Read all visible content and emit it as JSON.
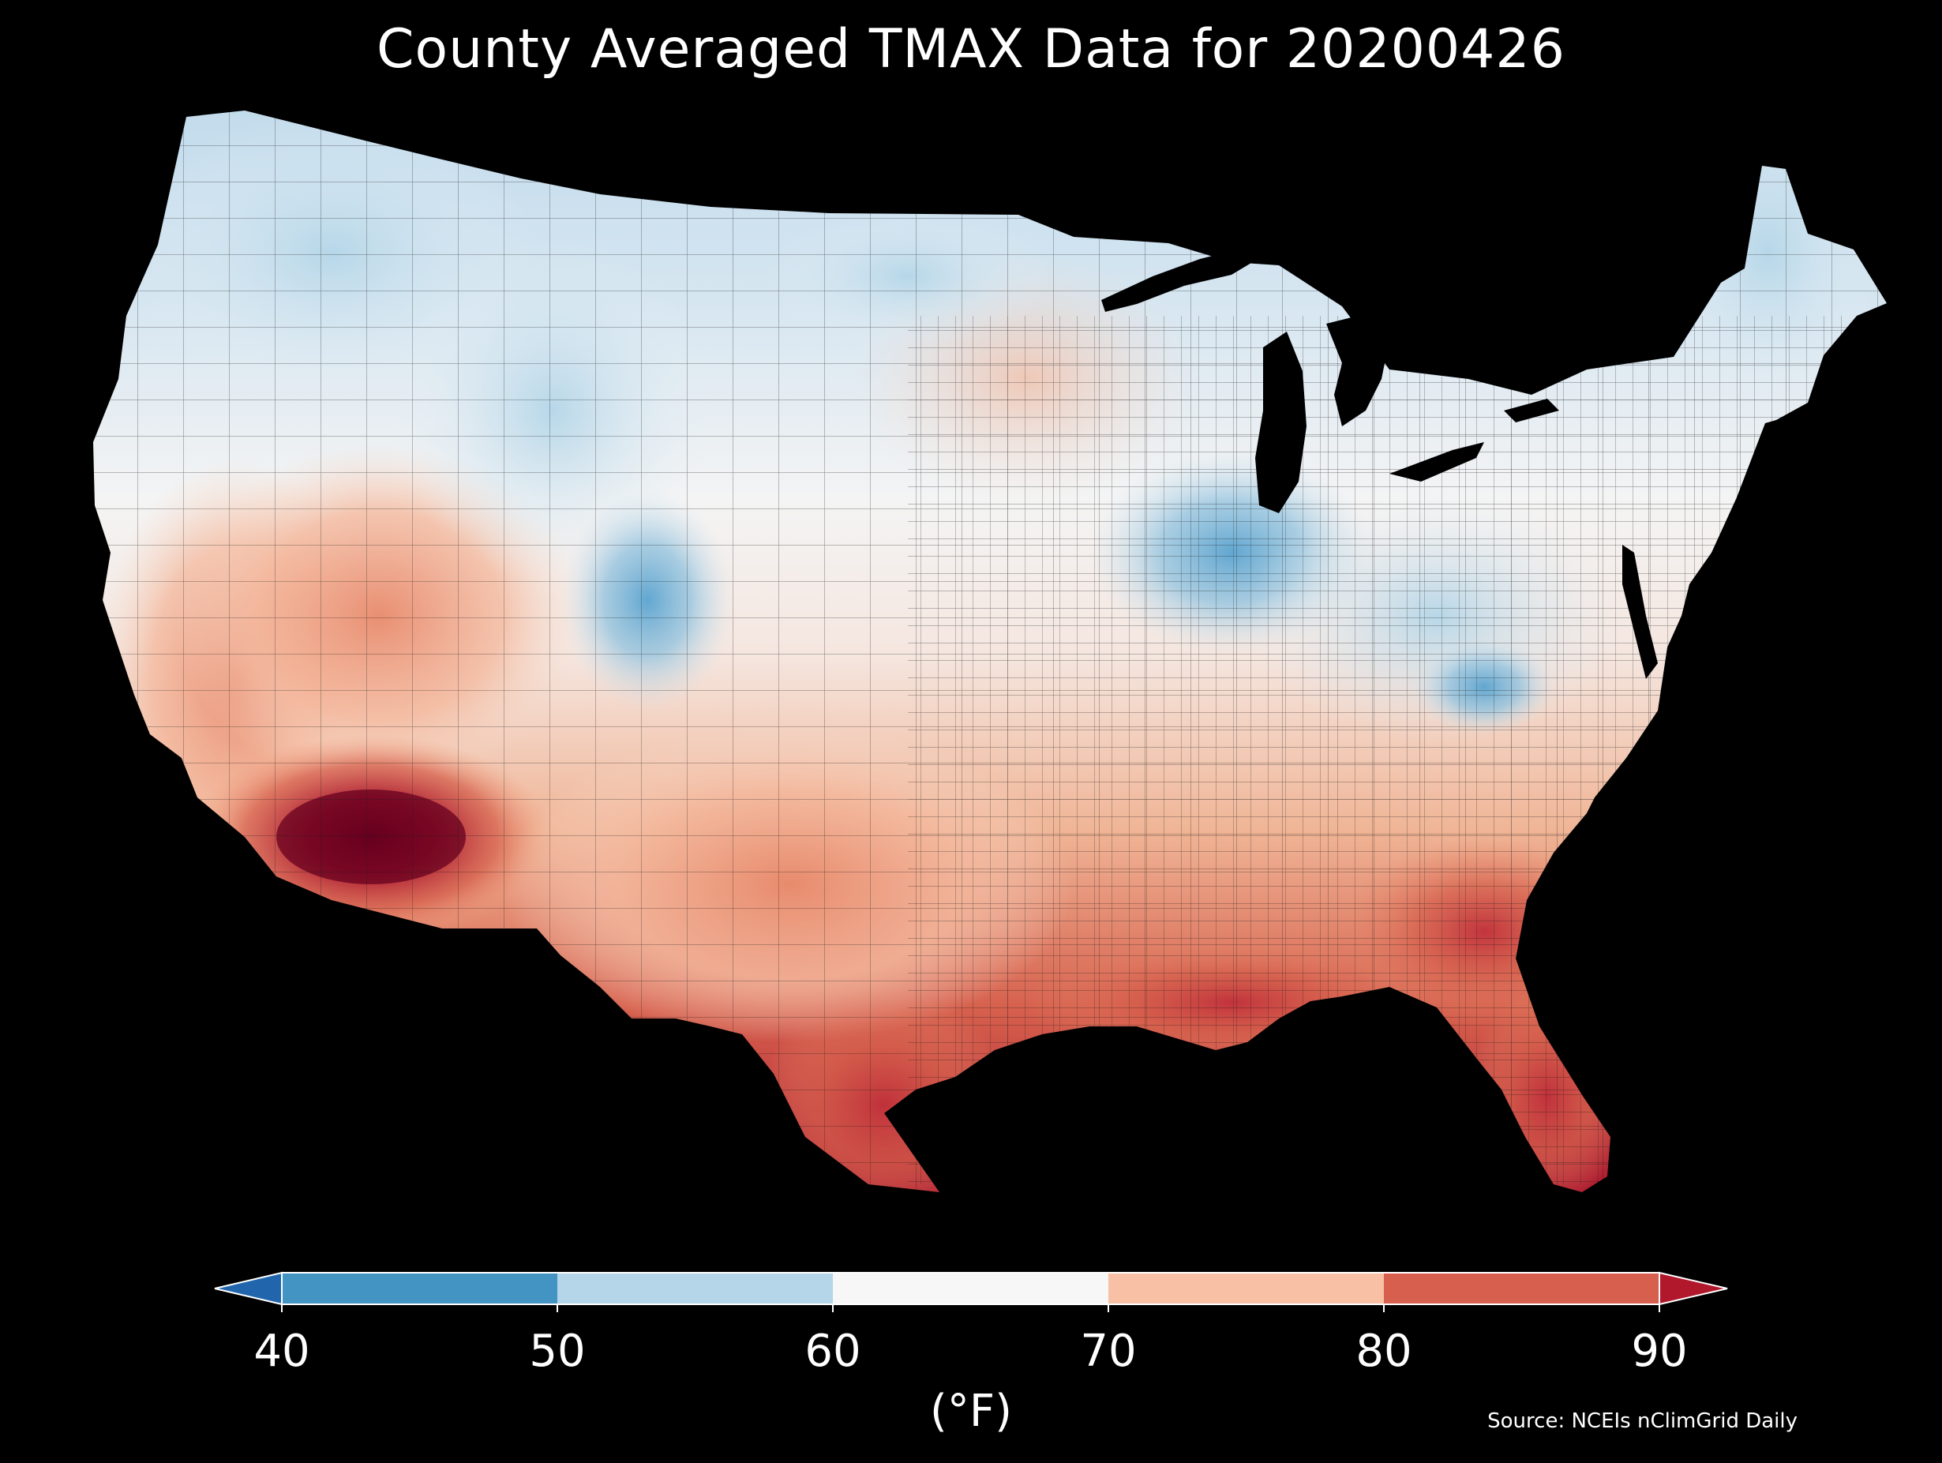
{
  "title": "County Averaged TMAX Data for 20200426",
  "source": "Source: NCEIs nClimGrid Daily",
  "colorbar": {
    "unit": "(°F)",
    "ticks": [
      "40",
      "50",
      "60",
      "70",
      "80",
      "90"
    ],
    "under_color": "#2166ac",
    "bin_colors": [
      "#4393c3",
      "#b4d6e8",
      "#f7f7f7",
      "#f8c1a5",
      "#d6604d"
    ],
    "over_color": "#b2182b"
  },
  "palette": {
    "below_40": "#1c5796",
    "40_50": "#4393c3",
    "50_60": "#b4d6e8",
    "60_70": "#f4f4f4",
    "70_80": "#f4b99e",
    "80_90": "#d6604d",
    "above_90": "#67001f"
  }
}
